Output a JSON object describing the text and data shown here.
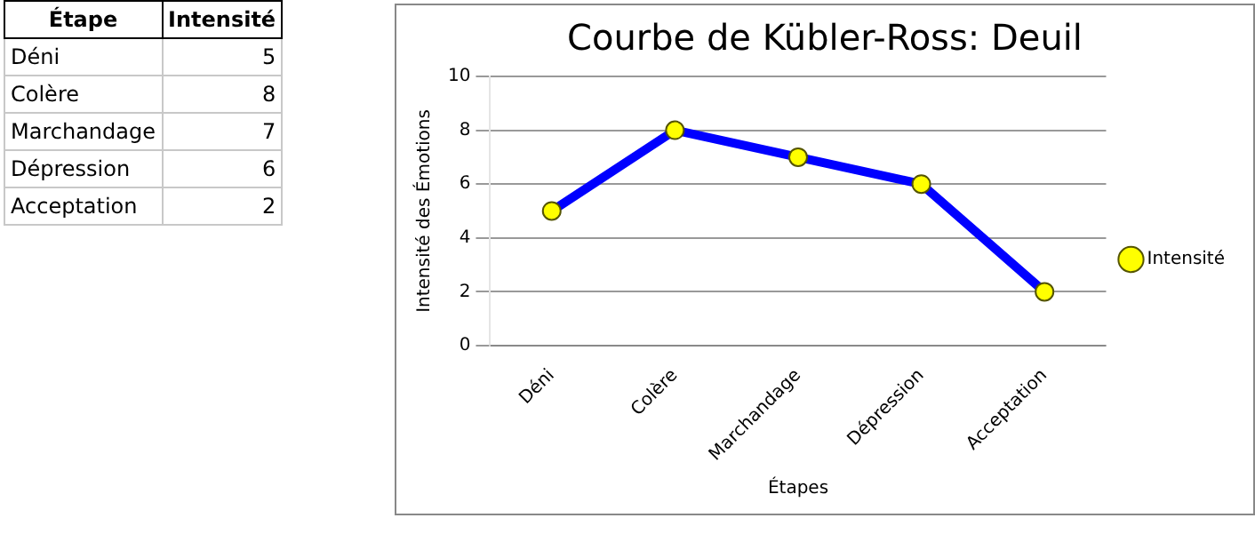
{
  "chart_data": [
    {
      "type": "other",
      "xlabel": "Étape",
      "categories": [
        "Déni",
        "Colère",
        "Marchandage",
        "Dépression",
        "Acceptation"
      ],
      "series": [
        {
          "name": "Intensité",
          "values": [
            5,
            8,
            7,
            6,
            2
          ]
        }
      ],
      "data_labels": true
    },
    {
      "type": "line",
      "title": "Courbe de Kübler-Ross: Deuil",
      "xlabel": "Étapes",
      "ylabel": "Intensité des Émotions",
      "categories": [
        "Déni",
        "Colère",
        "Marchandage",
        "Dépression",
        "Acceptation"
      ],
      "series": [
        {
          "name": "Intensité",
          "color": "#0000ff",
          "colors": [
            "#ffff00",
            "#ffff00",
            "#ffff00",
            "#ffff00",
            "#ffff00"
          ],
          "values": [
            5,
            8,
            7,
            6,
            2
          ]
        }
      ],
      "ylim": [
        0,
        10
      ],
      "yticks": [
        0,
        2,
        4,
        6,
        8,
        10
      ],
      "grid": "y",
      "legend": "right",
      "marker": "circle",
      "line_style": "solid"
    }
  ]
}
